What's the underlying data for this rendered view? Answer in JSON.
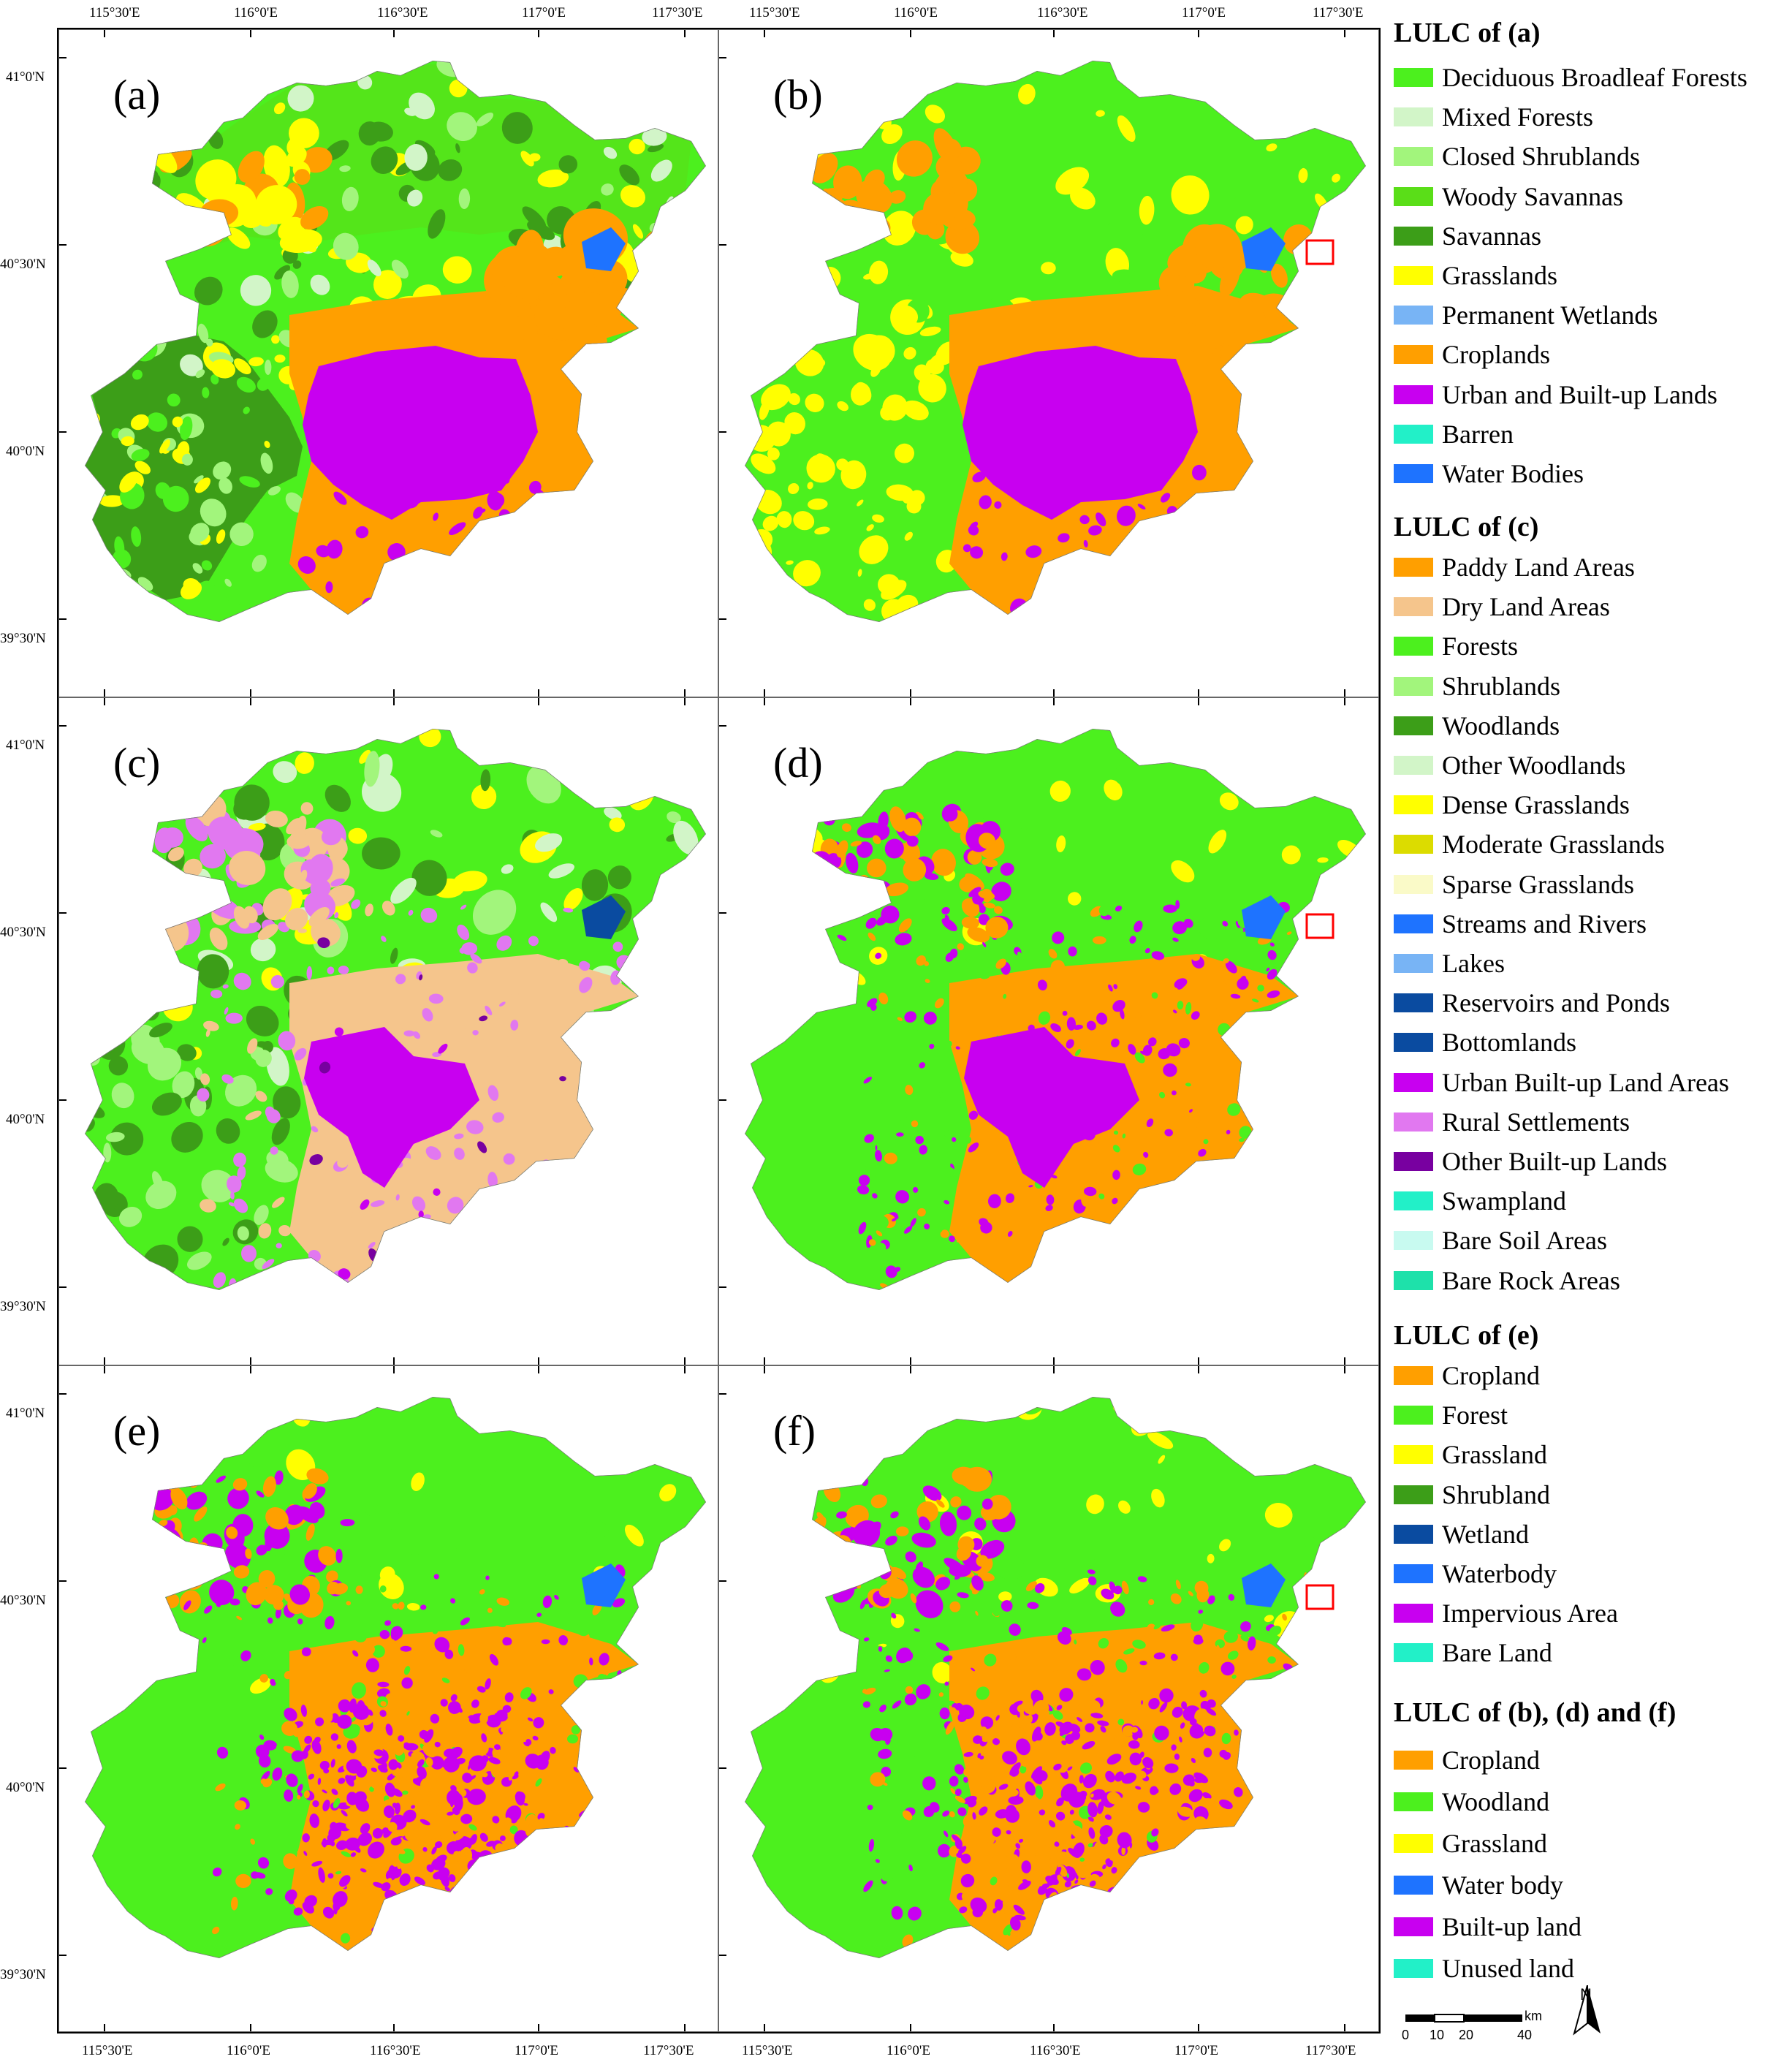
{
  "panels": [
    {
      "id": "a",
      "label": "(a)"
    },
    {
      "id": "b",
      "label": "(b)"
    },
    {
      "id": "c",
      "label": "(c)"
    },
    {
      "id": "d",
      "label": "(d)"
    },
    {
      "id": "e",
      "label": "(e)"
    },
    {
      "id": "f",
      "label": "(f)"
    }
  ],
  "lon_ticks": [
    "115°30'E",
    "116°0'E",
    "116°30'E",
    "117°0'E",
    "117°30'E"
  ],
  "lat_ticks": [
    "41°0'N",
    "40°30'N",
    "40°0'N",
    "39°30'N"
  ],
  "colors": {
    "forest": "#4cf01e",
    "dark_forest": "#3c9e18",
    "grassland": "#ffff00",
    "cropland": "#ff9f00",
    "builtup": "#c800f0",
    "water": "#1e73ff",
    "dryland": "#f5c58c",
    "light_green": "#a2f57c",
    "highlight_box": "#ff0000"
  },
  "legends": {
    "a": {
      "title": "LULC of (a)",
      "items": [
        {
          "label": "Deciduous Broadleaf Forests",
          "color": "#4cf01e"
        },
        {
          "label": "Mixed Forests",
          "color": "#d2f5c8"
        },
        {
          "label": "Closed Shrublands",
          "color": "#a2f57c"
        },
        {
          "label": "Woody Savannas",
          "color": "#5ade18"
        },
        {
          "label": "Savannas",
          "color": "#3c9e18"
        },
        {
          "label": "Grasslands",
          "color": "#ffff00"
        },
        {
          "label": "Permanent Wetlands",
          "color": "#78b4f5"
        },
        {
          "label": "Croplands",
          "color": "#ff9f00"
        },
        {
          "label": "Urban and Built-up Lands",
          "color": "#c800f0"
        },
        {
          "label": "Barren",
          "color": "#22f0c8"
        },
        {
          "label": "Water Bodies",
          "color": "#1e73ff"
        }
      ]
    },
    "c": {
      "title": "LULC of (c)",
      "items": [
        {
          "label": "Paddy Land Areas",
          "color": "#ff9f00"
        },
        {
          "label": "Dry Land Areas",
          "color": "#f5c58c"
        },
        {
          "label": "Forests",
          "color": "#4cf01e"
        },
        {
          "label": "Shrublands",
          "color": "#a2f57c"
        },
        {
          "label": "Woodlands",
          "color": "#3c9e18"
        },
        {
          "label": "Other Woodlands",
          "color": "#d2f5c8"
        },
        {
          "label": "Dense Grasslands",
          "color": "#ffff00"
        },
        {
          "label": "Moderate Grasslands",
          "color": "#dcdc00"
        },
        {
          "label": "Sparse Grasslands",
          "color": "#fafac8"
        },
        {
          "label": "Streams and Rivers",
          "color": "#1e73ff"
        },
        {
          "label": "Lakes",
          "color": "#78b4f5"
        },
        {
          "label": "Reservoirs and Ponds",
          "color": "#0a4ba0"
        },
        {
          "label": "Bottomlands",
          "color": "#0a4ba0"
        },
        {
          "label": "Urban Built-up Land Areas",
          "color": "#c800f0"
        },
        {
          "label": "Rural Settlements",
          "color": "#e178f0"
        },
        {
          "label": "Other Built-up Lands",
          "color": "#7800a0"
        },
        {
          "label": "Swampland",
          "color": "#22f0c8"
        },
        {
          "label": "Bare Soil Areas",
          "color": "#c8faf0"
        },
        {
          "label": "Bare Rock Areas",
          "color": "#1ee1aa"
        }
      ]
    },
    "e": {
      "title": "LULC of (e)",
      "items": [
        {
          "label": "Cropland",
          "color": "#ff9f00"
        },
        {
          "label": "Forest",
          "color": "#4cf01e"
        },
        {
          "label": "Grassland",
          "color": "#ffff00"
        },
        {
          "label": "Shrubland",
          "color": "#3c9e18"
        },
        {
          "label": "Wetland",
          "color": "#0a4ba0"
        },
        {
          "label": "Waterbody",
          "color": "#1e73ff"
        },
        {
          "label": "Impervious Area",
          "color": "#c800f0"
        },
        {
          "label": "Bare Land",
          "color": "#22f0c8"
        }
      ]
    },
    "bdf": {
      "title": "LULC of (b), (d) and (f)",
      "items": [
        {
          "label": "Cropland",
          "color": "#ff9f00"
        },
        {
          "label": "Woodland",
          "color": "#4cf01e"
        },
        {
          "label": "Grassland",
          "color": "#ffff00"
        },
        {
          "label": "Water body",
          "color": "#1e73ff"
        },
        {
          "label": "Built-up land",
          "color": "#c800f0"
        },
        {
          "label": "Unused land",
          "color": "#22f0c8"
        }
      ]
    }
  },
  "scalebar": {
    "ticks": [
      "0",
      "10",
      "20",
      "40"
    ],
    "unit": "km"
  },
  "north_arrow": {
    "label": "N"
  }
}
